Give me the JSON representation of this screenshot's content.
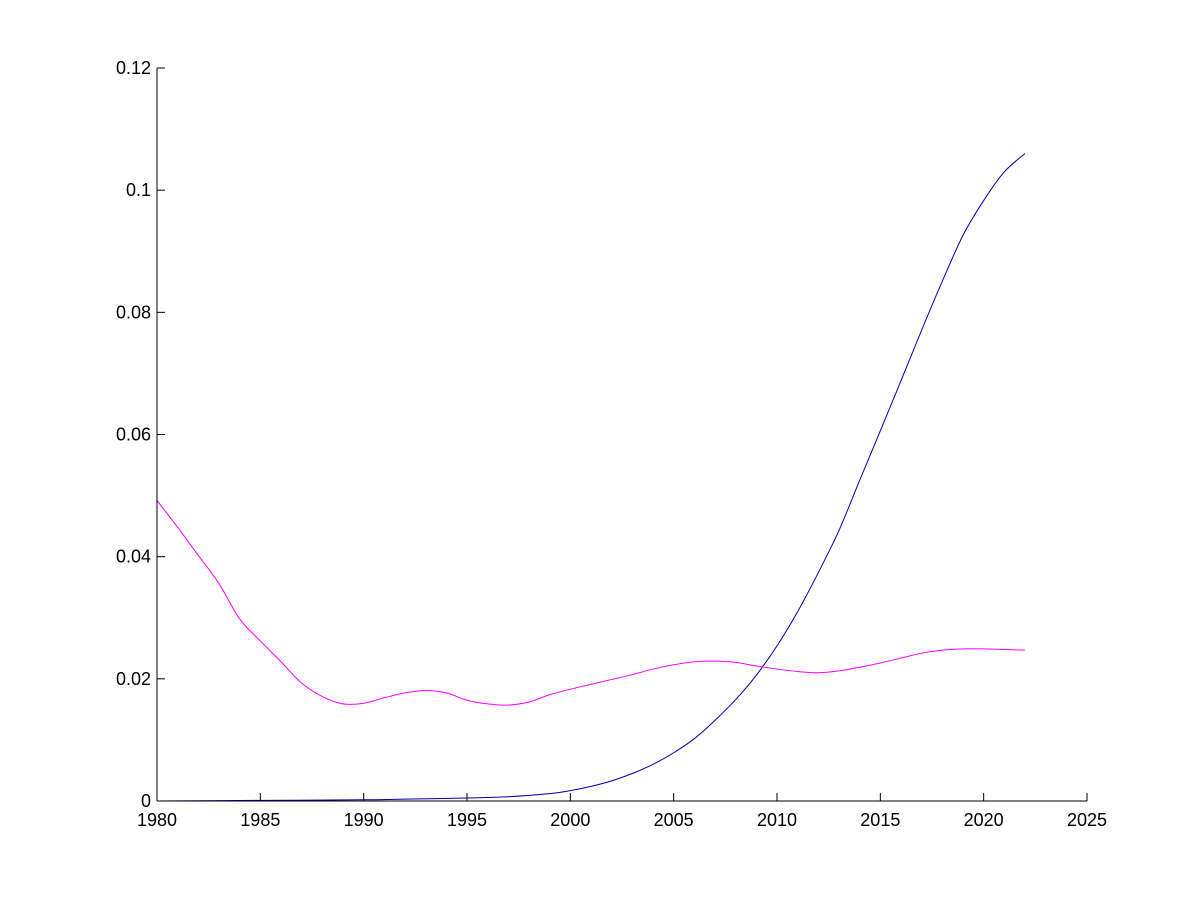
{
  "chart_data": {
    "type": "line",
    "title": "",
    "xlabel": "",
    "ylabel": "",
    "xlim": [
      1980,
      2025
    ],
    "ylim": [
      0,
      0.12
    ],
    "x_ticks": [
      1980,
      1985,
      1990,
      1995,
      2000,
      2005,
      2010,
      2015,
      2020,
      2025
    ],
    "x_tick_labels": [
      "1980",
      "1985",
      "1990",
      "1995",
      "2000",
      "2005",
      "2010",
      "2015",
      "2020",
      "2025"
    ],
    "y_ticks": [
      0,
      0.02,
      0.04,
      0.06,
      0.08,
      0.1,
      0.12
    ],
    "y_tick_labels": [
      "0",
      "0.02",
      "0.04",
      "0.06",
      "0.08",
      "0.1",
      "0.12"
    ],
    "grid": false,
    "legend": "none",
    "series": [
      {
        "color": "#0000aa",
        "x": [
          1980,
          1985,
          1990,
          1992,
          1995,
          1997,
          1999,
          2000,
          2001,
          2002,
          2003,
          2004,
          2005,
          2006,
          2007,
          2008,
          2009,
          2010,
          2011,
          2012,
          2013,
          2014,
          2015,
          2016,
          2017,
          2018,
          2019,
          2020,
          2021,
          2022
        ],
        "values": [
          0.0,
          0.0001,
          0.0002,
          0.0003,
          0.0005,
          0.0007,
          0.0012,
          0.0017,
          0.0024,
          0.0033,
          0.0045,
          0.006,
          0.0079,
          0.0102,
          0.0132,
          0.0166,
          0.0206,
          0.0254,
          0.031,
          0.0374,
          0.0443,
          0.0525,
          0.0606,
          0.0688,
          0.0771,
          0.0851,
          0.0926,
          0.0983,
          0.103,
          0.106
        ]
      },
      {
        "color": "#ff00ff",
        "x": [
          1980,
          1981,
          1982,
          1983,
          1984,
          1985,
          1986,
          1987,
          1988,
          1989,
          1990,
          1991,
          1992,
          1993,
          1994,
          1995,
          1996,
          1997,
          1998,
          1999,
          2000,
          2001,
          2002,
          2003,
          2004,
          2005,
          2006,
          2007,
          2008,
          2009,
          2010,
          2011,
          2012,
          2013,
          2014,
          2015,
          2016,
          2017,
          2018,
          2019,
          2020,
          2021,
          2022
        ],
        "values": [
          0.0492,
          0.0448,
          0.0402,
          0.0356,
          0.0298,
          0.0262,
          0.0228,
          0.0193,
          0.0171,
          0.0159,
          0.016,
          0.0169,
          0.0177,
          0.0181,
          0.0177,
          0.0165,
          0.0159,
          0.0157,
          0.0162,
          0.0174,
          0.0183,
          0.0191,
          0.0199,
          0.0207,
          0.0216,
          0.0223,
          0.0228,
          0.0229,
          0.0227,
          0.0221,
          0.0216,
          0.0212,
          0.021,
          0.0213,
          0.0219,
          0.0226,
          0.0234,
          0.0242,
          0.0247,
          0.0249,
          0.0249,
          0.0248,
          0.0247
        ]
      }
    ]
  }
}
